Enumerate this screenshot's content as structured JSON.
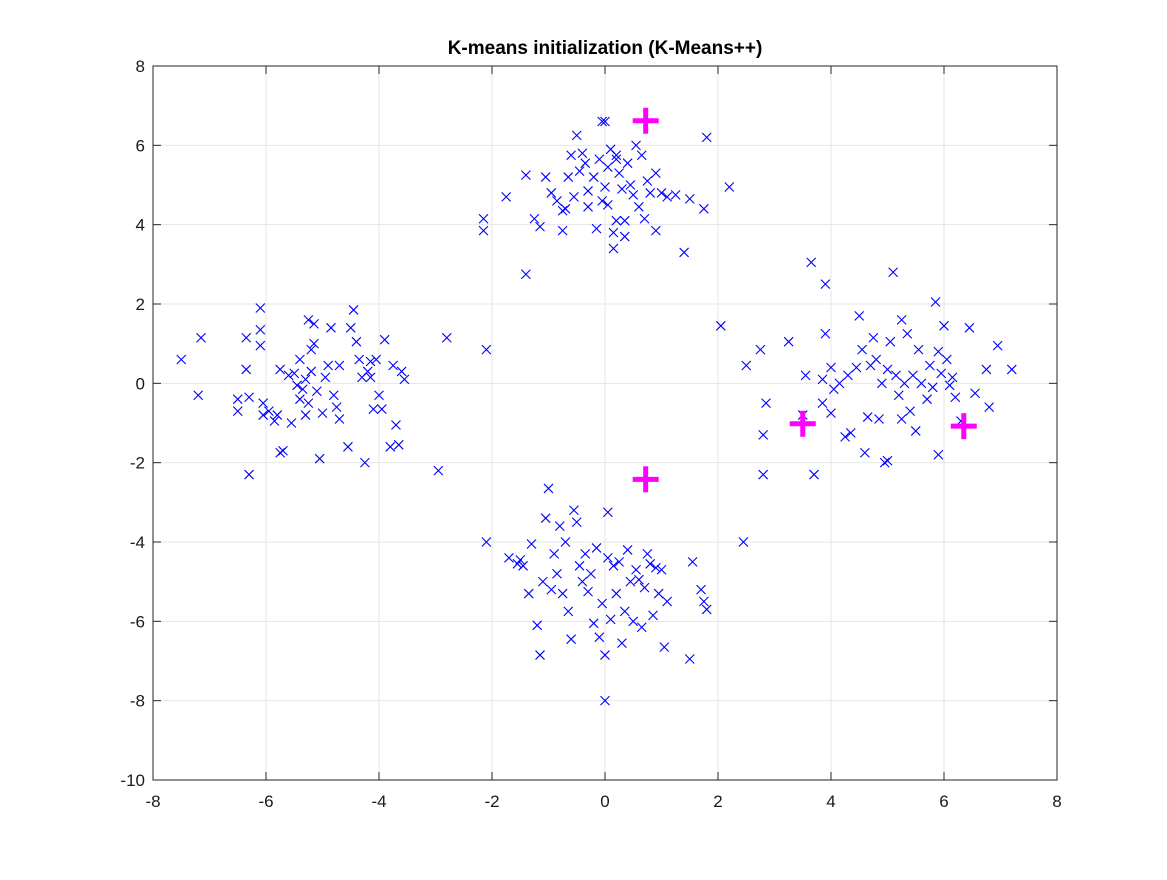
{
  "chart_data": {
    "type": "scatter",
    "title": "K-means initialization (K-Means++)",
    "xlabel": "",
    "ylabel": "",
    "xlim": [
      -8,
      8
    ],
    "ylim": [
      -10,
      8
    ],
    "xticks": [
      -8,
      -6,
      -4,
      -2,
      0,
      2,
      4,
      6,
      8
    ],
    "yticks": [
      -10,
      -8,
      -6,
      -4,
      -2,
      0,
      2,
      4,
      6,
      8
    ],
    "grid": true,
    "colors": {
      "points": "#0000ff",
      "centroids": "#ff00ff",
      "grid": "#e6e6e6",
      "axes": "#262626"
    },
    "series": [
      {
        "marker": "x",
        "color": "#0000ff",
        "points": [
          [
            -7.5,
            0.6
          ],
          [
            -7.15,
            1.15
          ],
          [
            -7.2,
            -0.3
          ],
          [
            -6.5,
            -0.4
          ],
          [
            -6.5,
            -0.7
          ],
          [
            -6.35,
            1.15
          ],
          [
            -6.35,
            0.35
          ],
          [
            -6.3,
            -0.35
          ],
          [
            -6.3,
            -2.3
          ],
          [
            -6.1,
            1.9
          ],
          [
            -6.1,
            1.35
          ],
          [
            -6.1,
            0.95
          ],
          [
            -6.05,
            -0.5
          ],
          [
            -6.05,
            -0.8
          ],
          [
            -5.95,
            -0.7
          ],
          [
            -5.85,
            -0.95
          ],
          [
            -5.8,
            -0.8
          ],
          [
            -5.75,
            0.35
          ],
          [
            -5.75,
            -1.75
          ],
          [
            -5.7,
            -1.7
          ],
          [
            -5.6,
            0.2
          ],
          [
            -5.55,
            -1.0
          ],
          [
            -5.5,
            0.25
          ],
          [
            -5.45,
            -0.05
          ],
          [
            -5.4,
            0.6
          ],
          [
            -5.4,
            -0.4
          ],
          [
            -5.35,
            -0.15
          ],
          [
            -5.3,
            0.1
          ],
          [
            -5.3,
            -0.8
          ],
          [
            -5.25,
            1.6
          ],
          [
            -5.25,
            -0.5
          ],
          [
            -5.2,
            0.85
          ],
          [
            -5.2,
            0.3
          ],
          [
            -5.15,
            1.5
          ],
          [
            -5.15,
            1.0
          ],
          [
            -5.1,
            -0.2
          ],
          [
            -5.05,
            -1.9
          ],
          [
            -5.0,
            -0.75
          ],
          [
            -4.95,
            0.15
          ],
          [
            -4.9,
            0.45
          ],
          [
            -4.85,
            1.4
          ],
          [
            -4.8,
            -0.3
          ],
          [
            -4.75,
            -0.6
          ],
          [
            -4.7,
            0.45
          ],
          [
            -4.7,
            -0.9
          ],
          [
            -4.55,
            -1.6
          ],
          [
            -4.5,
            1.4
          ],
          [
            -4.45,
            1.85
          ],
          [
            -4.4,
            1.05
          ],
          [
            -4.35,
            0.6
          ],
          [
            -4.3,
            0.15
          ],
          [
            -4.25,
            -2.0
          ],
          [
            -4.2,
            0.3
          ],
          [
            -4.15,
            0.55
          ],
          [
            -4.15,
            0.15
          ],
          [
            -4.1,
            -0.65
          ],
          [
            -4.05,
            0.6
          ],
          [
            -4.0,
            -0.3
          ],
          [
            -3.95,
            -0.65
          ],
          [
            -3.9,
            1.1
          ],
          [
            -3.8,
            -1.6
          ],
          [
            -3.75,
            0.45
          ],
          [
            -3.7,
            -1.05
          ],
          [
            -3.65,
            -1.55
          ],
          [
            -3.6,
            0.3
          ],
          [
            -3.55,
            0.1
          ],
          [
            -2.95,
            -2.2
          ],
          [
            -2.8,
            1.15
          ],
          [
            -2.15,
            4.15
          ],
          [
            -2.15,
            3.85
          ],
          [
            -2.1,
            0.85
          ],
          [
            -1.75,
            4.7
          ],
          [
            -1.4,
            5.25
          ],
          [
            -1.4,
            2.75
          ],
          [
            -1.25,
            4.15
          ],
          [
            -1.15,
            3.95
          ],
          [
            -1.05,
            5.2
          ],
          [
            -0.95,
            4.8
          ],
          [
            -0.85,
            4.6
          ],
          [
            -0.75,
            4.35
          ],
          [
            -0.75,
            3.85
          ],
          [
            -0.7,
            4.4
          ],
          [
            -0.65,
            5.2
          ],
          [
            -0.6,
            5.75
          ],
          [
            -0.55,
            4.7
          ],
          [
            -0.5,
            6.25
          ],
          [
            -0.45,
            5.35
          ],
          [
            -0.4,
            5.8
          ],
          [
            -0.35,
            5.55
          ],
          [
            -0.3,
            4.85
          ],
          [
            -0.3,
            4.45
          ],
          [
            -0.2,
            5.2
          ],
          [
            -0.15,
            3.9
          ],
          [
            -0.1,
            5.65
          ],
          [
            -0.05,
            4.6
          ],
          [
            0.0,
            4.95
          ],
          [
            0.0,
            6.6
          ],
          [
            0.05,
            5.45
          ],
          [
            0.05,
            4.5
          ],
          [
            0.1,
            5.9
          ],
          [
            0.15,
            3.8
          ],
          [
            0.15,
            3.4
          ],
          [
            0.2,
            5.75
          ],
          [
            0.2,
            4.1
          ],
          [
            0.25,
            5.3
          ],
          [
            0.3,
            4.9
          ],
          [
            0.35,
            4.1
          ],
          [
            0.35,
            3.7
          ],
          [
            0.4,
            5.55
          ],
          [
            0.45,
            5.0
          ],
          [
            0.5,
            4.75
          ],
          [
            0.55,
            6.0
          ],
          [
            0.6,
            4.45
          ],
          [
            0.65,
            5.75
          ],
          [
            0.7,
            4.15
          ],
          [
            0.75,
            5.1
          ],
          [
            0.8,
            4.8
          ],
          [
            0.9,
            3.85
          ],
          [
            0.9,
            5.3
          ],
          [
            1.0,
            4.8
          ],
          [
            1.1,
            4.7
          ],
          [
            1.25,
            4.75
          ],
          [
            1.4,
            3.3
          ],
          [
            1.5,
            4.65
          ],
          [
            1.75,
            4.4
          ],
          [
            1.8,
            6.2
          ],
          [
            2.2,
            4.95
          ],
          [
            -0.05,
            6.6
          ],
          [
            0.2,
            5.65
          ],
          [
            -2.1,
            -4.0
          ],
          [
            -1.7,
            -4.4
          ],
          [
            -1.55,
            -4.55
          ],
          [
            -1.5,
            -4.45
          ],
          [
            -1.45,
            -4.6
          ],
          [
            -1.35,
            -5.3
          ],
          [
            -1.3,
            -4.05
          ],
          [
            -1.2,
            -6.1
          ],
          [
            -1.15,
            -6.85
          ],
          [
            -1.1,
            -5.0
          ],
          [
            -1.05,
            -3.4
          ],
          [
            -1.0,
            -2.65
          ],
          [
            -0.95,
            -5.2
          ],
          [
            -0.9,
            -4.3
          ],
          [
            -0.85,
            -4.8
          ],
          [
            -0.8,
            -3.6
          ],
          [
            -0.75,
            -5.3
          ],
          [
            -0.7,
            -4.0
          ],
          [
            -0.65,
            -5.75
          ],
          [
            -0.6,
            -6.45
          ],
          [
            -0.55,
            -3.2
          ],
          [
            -0.5,
            -3.5
          ],
          [
            -0.45,
            -4.6
          ],
          [
            -0.4,
            -5.0
          ],
          [
            -0.35,
            -4.3
          ],
          [
            -0.3,
            -5.25
          ],
          [
            -0.25,
            -4.8
          ],
          [
            -0.2,
            -6.05
          ],
          [
            -0.15,
            -4.15
          ],
          [
            -0.1,
            -6.4
          ],
          [
            -0.05,
            -5.55
          ],
          [
            0.0,
            -6.85
          ],
          [
            0.05,
            -4.4
          ],
          [
            0.05,
            -3.25
          ],
          [
            0.1,
            -5.95
          ],
          [
            0.15,
            -4.6
          ],
          [
            0.2,
            -5.3
          ],
          [
            0.25,
            -4.5
          ],
          [
            0.3,
            -6.55
          ],
          [
            0.35,
            -5.75
          ],
          [
            0.4,
            -4.2
          ],
          [
            0.45,
            -5.0
          ],
          [
            0.5,
            -6.0
          ],
          [
            0.55,
            -4.7
          ],
          [
            0.6,
            -4.95
          ],
          [
            0.65,
            -6.15
          ],
          [
            0.7,
            -5.15
          ],
          [
            0.75,
            -4.3
          ],
          [
            0.8,
            -4.55
          ],
          [
            0.85,
            -5.85
          ],
          [
            0.9,
            -4.65
          ],
          [
            0.95,
            -5.3
          ],
          [
            1.0,
            -4.7
          ],
          [
            1.05,
            -6.65
          ],
          [
            1.1,
            -5.5
          ],
          [
            1.5,
            -6.95
          ],
          [
            1.55,
            -4.5
          ],
          [
            1.7,
            -5.2
          ],
          [
            1.75,
            -5.5
          ],
          [
            1.8,
            -5.7
          ],
          [
            2.45,
            -4.0
          ],
          [
            0.0,
            -8.0
          ],
          [
            2.05,
            1.45
          ],
          [
            2.5,
            0.45
          ],
          [
            2.75,
            0.85
          ],
          [
            2.8,
            -1.3
          ],
          [
            2.8,
            -2.3
          ],
          [
            2.85,
            -0.5
          ],
          [
            3.25,
            1.05
          ],
          [
            3.5,
            -0.8
          ],
          [
            3.55,
            0.2
          ],
          [
            3.65,
            3.05
          ],
          [
            3.7,
            -2.3
          ],
          [
            3.85,
            -0.5
          ],
          [
            3.85,
            0.1
          ],
          [
            3.9,
            2.5
          ],
          [
            3.9,
            1.25
          ],
          [
            4.0,
            0.4
          ],
          [
            4.05,
            -0.15
          ],
          [
            4.15,
            0.0
          ],
          [
            4.25,
            -1.35
          ],
          [
            4.3,
            0.2
          ],
          [
            4.35,
            -1.25
          ],
          [
            4.45,
            0.4
          ],
          [
            4.5,
            1.7
          ],
          [
            4.55,
            0.85
          ],
          [
            4.6,
            -1.75
          ],
          [
            4.65,
            -0.85
          ],
          [
            4.7,
            0.45
          ],
          [
            4.75,
            1.15
          ],
          [
            4.8,
            0.6
          ],
          [
            4.85,
            -0.9
          ],
          [
            4.9,
            0.0
          ],
          [
            4.95,
            -2.0
          ],
          [
            5.0,
            0.35
          ],
          [
            5.0,
            -1.95
          ],
          [
            5.05,
            1.05
          ],
          [
            5.1,
            2.8
          ],
          [
            5.15,
            0.2
          ],
          [
            5.2,
            -0.3
          ],
          [
            5.25,
            1.6
          ],
          [
            5.3,
            0.0
          ],
          [
            5.35,
            1.25
          ],
          [
            5.4,
            -0.7
          ],
          [
            5.45,
            0.2
          ],
          [
            5.5,
            -1.2
          ],
          [
            5.55,
            0.85
          ],
          [
            5.6,
            0.0
          ],
          [
            5.7,
            -0.4
          ],
          [
            5.75,
            0.45
          ],
          [
            5.8,
            -0.1
          ],
          [
            5.85,
            2.05
          ],
          [
            5.9,
            0.8
          ],
          [
            5.9,
            -1.8
          ],
          [
            5.95,
            0.25
          ],
          [
            6.0,
            1.45
          ],
          [
            6.05,
            0.6
          ],
          [
            6.1,
            -0.05
          ],
          [
            6.15,
            0.15
          ],
          [
            6.2,
            -0.35
          ],
          [
            6.3,
            -0.95
          ],
          [
            6.45,
            1.4
          ],
          [
            6.55,
            -0.25
          ],
          [
            6.75,
            0.35
          ],
          [
            6.8,
            -0.6
          ],
          [
            6.95,
            0.95
          ],
          [
            7.2,
            0.35
          ],
          [
            5.25,
            -0.9
          ],
          [
            4.0,
            -0.75
          ]
        ]
      },
      {
        "marker": "plus",
        "color": "#ff00ff",
        "points": [
          [
            0.72,
            6.62
          ],
          [
            0.72,
            -2.42
          ],
          [
            3.5,
            -1.02
          ],
          [
            6.35,
            -1.08
          ]
        ]
      }
    ]
  }
}
